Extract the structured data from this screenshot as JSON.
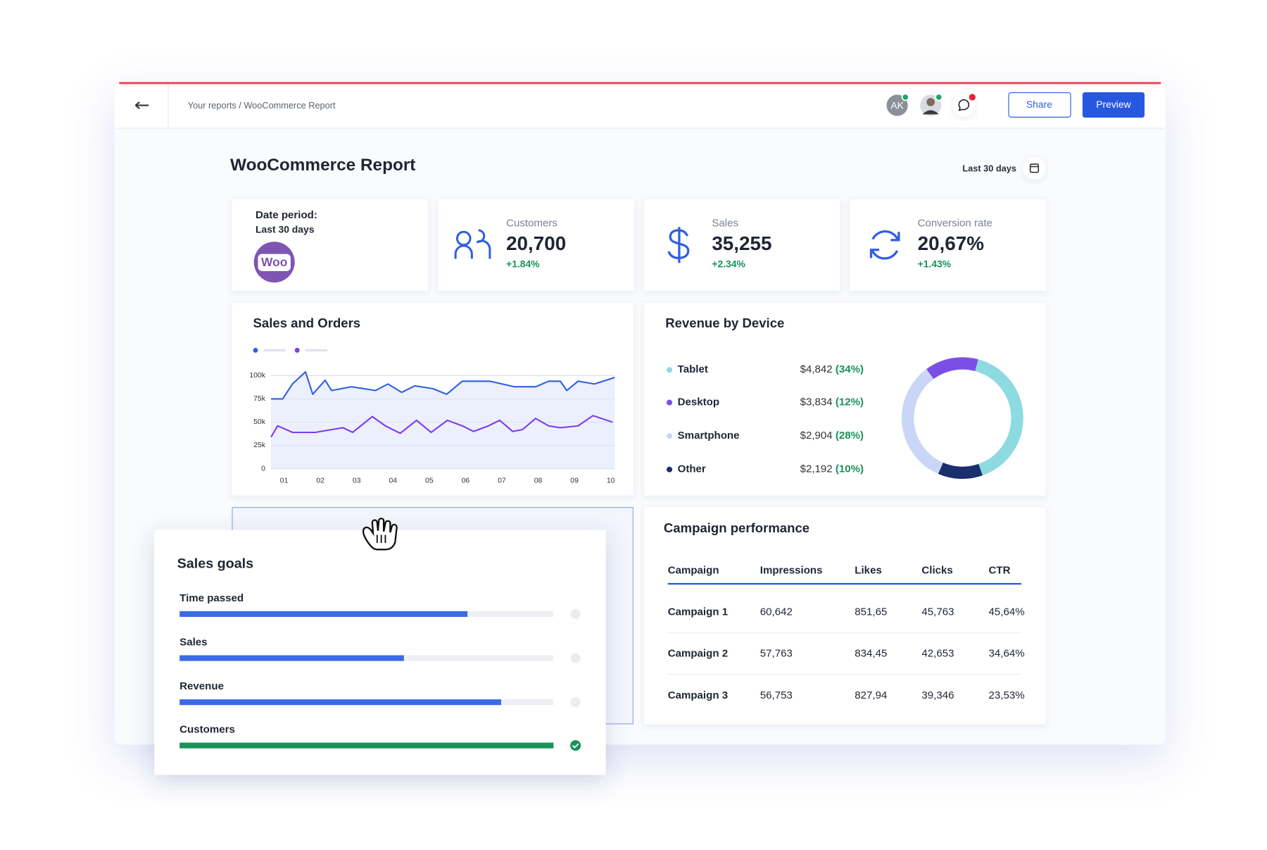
{
  "header": {
    "breadcrumb": "Your reports / WooCommerce Report",
    "avatar": "AK",
    "share": "Share",
    "preview": "Preview"
  },
  "report": {
    "title": "WooCommerce Report",
    "date_range": "Last 30 days"
  },
  "date_card": {
    "label": "Date period:",
    "value": "Last 30 days",
    "logo": "Woo"
  },
  "kpis": [
    {
      "label": "Customers",
      "value": "20,700",
      "change": "+1.84%"
    },
    {
      "label": "Sales",
      "value": "35,255",
      "change": "+2.34%"
    },
    {
      "label": "Conversion rate",
      "value": "20,67%",
      "change": "+1.43%"
    }
  ],
  "sales_orders": {
    "type": "line",
    "title": "Sales and Orders",
    "xlim": [
      0.64,
      10.11
    ],
    "xticks": [
      {
        "value": 1,
        "label": "01"
      },
      {
        "value": 2,
        "label": "02"
      },
      {
        "value": 3,
        "label": "03"
      },
      {
        "value": 4,
        "label": "04"
      },
      {
        "value": 5,
        "label": "05"
      },
      {
        "value": 6,
        "label": "06"
      },
      {
        "value": 7,
        "label": "07"
      },
      {
        "value": 8,
        "label": "08"
      },
      {
        "value": 9,
        "label": "09"
      },
      {
        "value": 10,
        "label": "10"
      }
    ],
    "ylim": [
      0,
      100000
    ],
    "yticks": [
      0,
      {
        "value": 25000,
        "label": "25k"
      },
      {
        "value": 50000,
        "label": "50k"
      },
      {
        "value": 75000,
        "label": "75k"
      },
      {
        "value": 100000,
        "label": "100k"
      }
    ],
    "grid": true,
    "series": [
      {
        "color": "#2f5fe0",
        "x": [
          0.64,
          0.96,
          1.23,
          1.59,
          1.79,
          2.13,
          2.31,
          2.85,
          3.52,
          3.86,
          4.24,
          4.6,
          5.1,
          5.48,
          5.91,
          6.67,
          7.35,
          7.93,
          8.29,
          8.61,
          8.79,
          9.1,
          9.55,
          10.11
        ],
        "values": [
          75000,
          75000,
          91000,
          104000,
          80000,
          95000,
          84000,
          88000,
          84000,
          91000,
          82000,
          89000,
          86000,
          80000,
          94000,
          94000,
          88000,
          88000,
          94000,
          94000,
          84000,
          94000,
          91000,
          98000
        ]
      },
      {
        "color": "#7c3aed",
        "x": [
          0.64,
          0.82,
          1.23,
          1.86,
          2.31,
          2.62,
          2.89,
          3.43,
          3.79,
          4.2,
          4.65,
          5.05,
          5.5,
          5.91,
          6.22,
          6.63,
          6.94,
          7.3,
          7.57,
          7.93,
          8.29,
          8.61,
          9.1,
          9.51,
          10.05
        ],
        "values": [
          34000,
          46000,
          39000,
          39000,
          42000,
          44000,
          39000,
          56000,
          46000,
          38000,
          52000,
          39000,
          52000,
          46000,
          40000,
          46000,
          52000,
          40000,
          42000,
          54000,
          46000,
          44000,
          46000,
          57000,
          50000
        ]
      }
    ]
  },
  "revenue_by_device": {
    "type": "donut",
    "title": "Revenue by Device",
    "items": [
      {
        "name": "Tablet",
        "amount": "$4,842",
        "share": 34,
        "share_label": "(34%)",
        "color": "#8ddbe0"
      },
      {
        "name": "Desktop",
        "amount": "$3,834",
        "share": 12,
        "share_label": "(12%)",
        "color": "#7b4fe6"
      },
      {
        "name": "Smartphone",
        "amount": "$2,904",
        "share": 28,
        "share_label": "(28%)",
        "color": "#c9d6f5"
      },
      {
        "name": "Other",
        "amount": "$2,192",
        "share": 10,
        "share_label": "(10%)",
        "color": "#1a2f6b"
      }
    ]
  },
  "campaign": {
    "title": "Campaign performance",
    "columns": [
      "Campaign",
      "Impressions",
      "Likes",
      "Clicks",
      "CTR"
    ],
    "rows": [
      [
        "Campaign 1",
        "60,642",
        "851,65",
        "45,763",
        "45,64%"
      ],
      [
        "Campaign 2",
        "57,763",
        "834,45",
        "42,653",
        "34,64%"
      ],
      [
        "Campaign 3",
        "56,753",
        "827,94",
        "39,346",
        "23,53%"
      ]
    ]
  },
  "sales_goals": {
    "title": "Sales goals",
    "items": [
      {
        "name": "Time passed",
        "progress": 77,
        "color": "#3b6ae6"
      },
      {
        "name": "Sales",
        "progress": 60,
        "color": "#3b6ae6"
      },
      {
        "name": "Revenue",
        "progress": 86,
        "color": "#3b6ae6"
      },
      {
        "name": "Customers",
        "progress": 100,
        "color": "#17935a"
      }
    ]
  }
}
